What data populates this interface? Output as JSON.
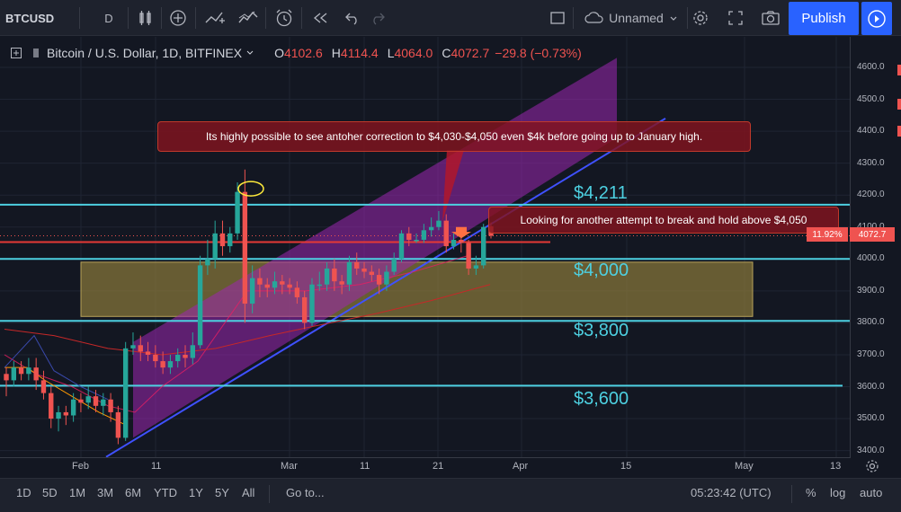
{
  "toolbar": {
    "symbol": "BTCUSD",
    "interval": "D",
    "layout_name": "Unnamed",
    "publish_label": "Publish"
  },
  "legend": {
    "title": "Bitcoin / U.S. Dollar, 1D, BITFINEX",
    "open_label": "O",
    "open": "4102.6",
    "high_label": "H",
    "high": "4114.4",
    "low_label": "L",
    "low": "4064.0",
    "close_label": "C",
    "close": "4072.7",
    "change": "−29.8 (−0.73%)"
  },
  "annotations": {
    "callout_top": "Its highly possible to see antoher correction to $4,030-$4,050 even $4k before going up to January high.",
    "callout_right": "Looking for another attempt to break and hold above $4,050",
    "level_4211": "$4,211",
    "level_4000": "$4,000",
    "level_3800": "$3,800",
    "level_3600": "$3,600"
  },
  "price_axis": {
    "ticks": [
      "4600.0",
      "4500.0",
      "4400.0",
      "4300.0",
      "4200.0",
      "4100.0",
      "4000.0",
      "3900.0",
      "3800.0",
      "3700.0",
      "3600.0",
      "3500.0",
      "3400.0"
    ],
    "last_price": "4072.7",
    "pct_badge": "11.92%"
  },
  "time_axis": {
    "ticks": [
      "Feb",
      "11",
      "Mar",
      "11",
      "21",
      "Apr",
      "15",
      "May",
      "13"
    ]
  },
  "bottom_bar": {
    "ranges": [
      "1D",
      "5D",
      "1M",
      "3M",
      "6M",
      "YTD",
      "1Y",
      "5Y",
      "All"
    ],
    "goto": "Go to...",
    "clock": "05:23:42 (UTC)",
    "pct": "%",
    "log": "log",
    "auto": "auto"
  },
  "colors": {
    "background": "#131722",
    "up": "#26a69a",
    "down": "#ef5350",
    "channel": "#9c27b0",
    "support_line": "#4dd0e1",
    "zone": "#8b7a3a",
    "publish": "#2962ff"
  },
  "chart_data": {
    "type": "candlestick",
    "symbol": "BTCUSD",
    "exchange": "BITFINEX",
    "timeframe": "1D",
    "ylim": [
      3380,
      4650
    ],
    "x_tick_labels": [
      "Feb",
      "11",
      "Mar",
      "11",
      "21",
      "Apr",
      "15",
      "May",
      "13"
    ],
    "horizontal_levels": [
      4211,
      4000,
      3800,
      3600
    ],
    "candles": [
      {
        "o": 3640,
        "c": 3620,
        "h": 3660,
        "l": 3570
      },
      {
        "o": 3620,
        "c": 3660,
        "h": 3680,
        "l": 3600
      },
      {
        "o": 3660,
        "c": 3640,
        "h": 3680,
        "l": 3620
      },
      {
        "o": 3640,
        "c": 3660,
        "h": 3690,
        "l": 3620
      },
      {
        "o": 3660,
        "c": 3620,
        "h": 3690,
        "l": 3590
      },
      {
        "o": 3620,
        "c": 3580,
        "h": 3650,
        "l": 3560
      },
      {
        "o": 3580,
        "c": 3500,
        "h": 3600,
        "l": 3470
      },
      {
        "o": 3500,
        "c": 3520,
        "h": 3540,
        "l": 3460
      },
      {
        "o": 3520,
        "c": 3510,
        "h": 3540,
        "l": 3480
      },
      {
        "o": 3510,
        "c": 3560,
        "h": 3580,
        "l": 3490
      },
      {
        "o": 3560,
        "c": 3550,
        "h": 3580,
        "l": 3520
      },
      {
        "o": 3550,
        "c": 3570,
        "h": 3600,
        "l": 3530
      },
      {
        "o": 3570,
        "c": 3540,
        "h": 3590,
        "l": 3520
      },
      {
        "o": 3540,
        "c": 3560,
        "h": 3580,
        "l": 3510
      },
      {
        "o": 3560,
        "c": 3520,
        "h": 3580,
        "l": 3490
      },
      {
        "o": 3520,
        "c": 3440,
        "h": 3540,
        "l": 3420
      },
      {
        "o": 3440,
        "c": 3720,
        "h": 3740,
        "l": 3430
      },
      {
        "o": 3720,
        "c": 3730,
        "h": 3770,
        "l": 3700
      },
      {
        "o": 3730,
        "c": 3710,
        "h": 3760,
        "l": 3680
      },
      {
        "o": 3710,
        "c": 3700,
        "h": 3740,
        "l": 3680
      },
      {
        "o": 3700,
        "c": 3680,
        "h": 3730,
        "l": 3660
      },
      {
        "o": 3680,
        "c": 3660,
        "h": 3710,
        "l": 3640
      },
      {
        "o": 3660,
        "c": 3680,
        "h": 3700,
        "l": 3640
      },
      {
        "o": 3680,
        "c": 3700,
        "h": 3720,
        "l": 3660
      },
      {
        "o": 3700,
        "c": 3690,
        "h": 3730,
        "l": 3660
      },
      {
        "o": 3690,
        "c": 3730,
        "h": 3770,
        "l": 3670
      },
      {
        "o": 3730,
        "c": 3980,
        "h": 4010,
        "l": 3720
      },
      {
        "o": 3980,
        "c": 4000,
        "h": 4060,
        "l": 3950
      },
      {
        "o": 4000,
        "c": 4080,
        "h": 4120,
        "l": 3970
      },
      {
        "o": 4080,
        "c": 4040,
        "h": 4120,
        "l": 4010
      },
      {
        "o": 4040,
        "c": 4080,
        "h": 4100,
        "l": 4020
      },
      {
        "o": 4080,
        "c": 4210,
        "h": 4240,
        "l": 4060
      },
      {
        "o": 4210,
        "c": 3860,
        "h": 4280,
        "l": 3800
      },
      {
        "o": 3860,
        "c": 3940,
        "h": 3980,
        "l": 3830
      },
      {
        "o": 3940,
        "c": 3920,
        "h": 3970,
        "l": 3880
      },
      {
        "o": 3920,
        "c": 3910,
        "h": 3940,
        "l": 3880
      },
      {
        "o": 3910,
        "c": 3930,
        "h": 3960,
        "l": 3890
      },
      {
        "o": 3930,
        "c": 3920,
        "h": 3950,
        "l": 3890
      },
      {
        "o": 3920,
        "c": 3910,
        "h": 3940,
        "l": 3890
      },
      {
        "o": 3910,
        "c": 3880,
        "h": 3930,
        "l": 3860
      },
      {
        "o": 3880,
        "c": 3800,
        "h": 3900,
        "l": 3780
      },
      {
        "o": 3800,
        "c": 3920,
        "h": 3940,
        "l": 3790
      },
      {
        "o": 3920,
        "c": 3920,
        "h": 3960,
        "l": 3900
      },
      {
        "o": 3920,
        "c": 3970,
        "h": 3990,
        "l": 3900
      },
      {
        "o": 3970,
        "c": 3930,
        "h": 4000,
        "l": 3900
      },
      {
        "o": 3930,
        "c": 3920,
        "h": 3950,
        "l": 3890
      },
      {
        "o": 3920,
        "c": 3990,
        "h": 4010,
        "l": 3900
      },
      {
        "o": 3990,
        "c": 3970,
        "h": 4020,
        "l": 3950
      },
      {
        "o": 3970,
        "c": 3960,
        "h": 3990,
        "l": 3940
      },
      {
        "o": 3960,
        "c": 3950,
        "h": 3980,
        "l": 3930
      },
      {
        "o": 3950,
        "c": 3920,
        "h": 3970,
        "l": 3890
      },
      {
        "o": 3920,
        "c": 3960,
        "h": 3980,
        "l": 3900
      },
      {
        "o": 3960,
        "c": 4000,
        "h": 4020,
        "l": 3950
      },
      {
        "o": 4000,
        "c": 4080,
        "h": 4090,
        "l": 3990
      },
      {
        "o": 4080,
        "c": 4060,
        "h": 4100,
        "l": 4040
      },
      {
        "o": 4060,
        "c": 4060,
        "h": 4080,
        "l": 4050
      },
      {
        "o": 4060,
        "c": 4090,
        "h": 4110,
        "l": 4050
      },
      {
        "o": 4090,
        "c": 4100,
        "h": 4130,
        "l": 4070
      },
      {
        "o": 4100,
        "c": 4120,
        "h": 4150,
        "l": 4090
      },
      {
        "o": 4120,
        "c": 4040,
        "h": 4140,
        "l": 4020
      },
      {
        "o": 4040,
        "c": 4060,
        "h": 4080,
        "l": 4030
      },
      {
        "o": 4060,
        "c": 4050,
        "h": 4080,
        "l": 4020
      },
      {
        "o": 4050,
        "c": 3970,
        "h": 4060,
        "l": 3950
      },
      {
        "o": 3970,
        "c": 3980,
        "h": 4010,
        "l": 3950
      },
      {
        "o": 3980,
        "c": 4100,
        "h": 4110,
        "l": 3970
      },
      {
        "o": 4102.6,
        "c": 4072.7,
        "h": 4114.4,
        "l": 4064.0
      }
    ]
  }
}
